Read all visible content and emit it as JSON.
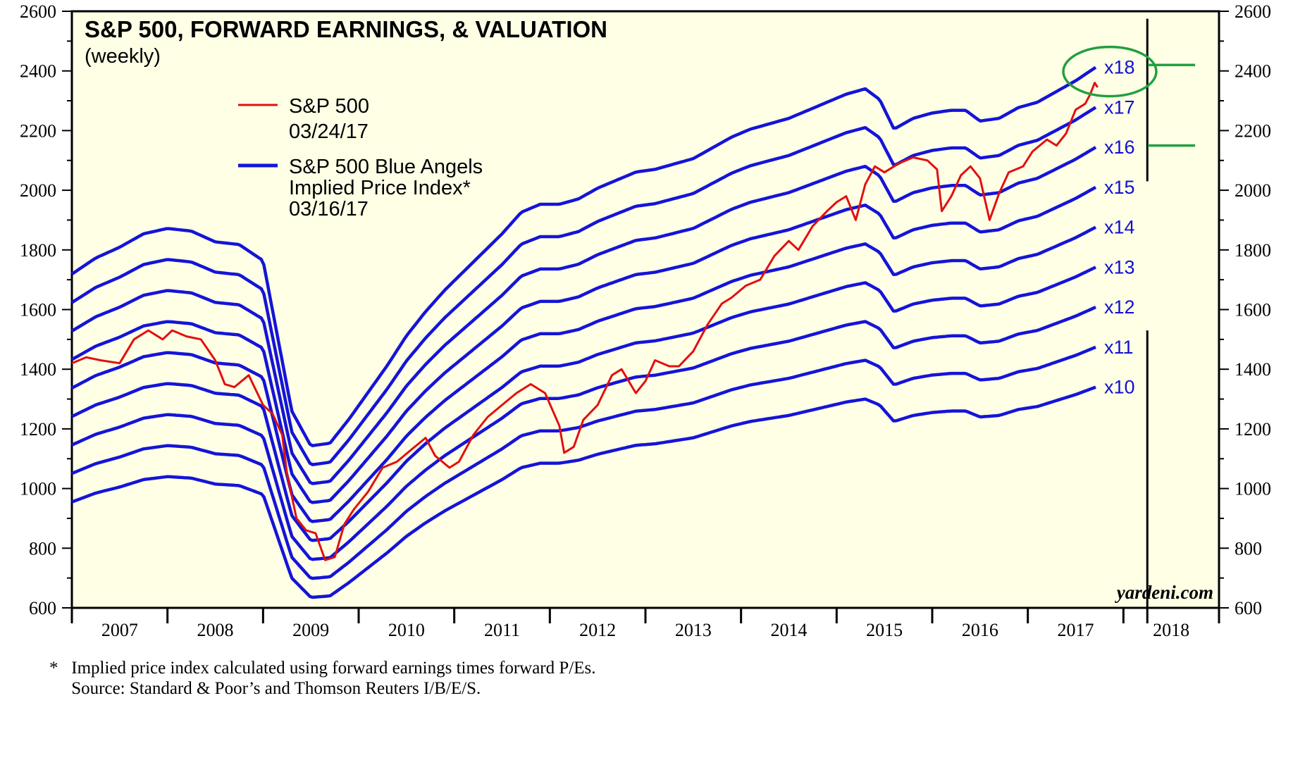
{
  "chart_data": {
    "type": "line",
    "title": "S&P 500, FORWARD EARNINGS, & VALUATION",
    "subtitle": "(weekly)",
    "x_ticks": [
      "2007",
      "2008",
      "2009",
      "2010",
      "2011",
      "2012",
      "2013",
      "2014",
      "2015",
      "2016",
      "2017",
      "2018"
    ],
    "xlim": [
      2006.5,
      2018.5
    ],
    "ylim": [
      600,
      2600
    ],
    "y_ticks": [
      600,
      800,
      1000,
      1200,
      1400,
      1600,
      1800,
      2000,
      2200,
      2400,
      2600
    ],
    "y_ticks_right": true,
    "legend": {
      "placement": "upper-left",
      "entries": [
        {
          "line1": "S&P 500",
          "line2": "03/24/17",
          "line3": "",
          "color": "#e01010"
        },
        {
          "line1": "S&P 500 Blue Angels",
          "line2": "Implied Price Index*",
          "line3": "03/16/17",
          "color": "#1414d8"
        }
      ]
    },
    "forward_earnings": {
      "x": [
        2006.5,
        2006.75,
        2007.0,
        2007.25,
        2007.5,
        2007.75,
        2008.0,
        2008.25,
        2008.5,
        2008.65,
        2008.8,
        2009.0,
        2009.2,
        2009.4,
        2009.6,
        2009.8,
        2010.0,
        2010.2,
        2010.4,
        2010.6,
        2010.8,
        2011.0,
        2011.2,
        2011.4,
        2011.6,
        2011.8,
        2012.0,
        2012.2,
        2012.4,
        2012.6,
        2012.8,
        2013.0,
        2013.2,
        2013.4,
        2013.6,
        2013.8,
        2014.0,
        2014.2,
        2014.4,
        2014.6,
        2014.8,
        2014.95,
        2015.1,
        2015.3,
        2015.5,
        2015.7,
        2015.85,
        2016.0,
        2016.2,
        2016.4,
        2016.6,
        2016.8,
        2017.0,
        2017.21
      ],
      "values": [
        95.5,
        98.5,
        100.5,
        103,
        104,
        103.5,
        101.5,
        101,
        98,
        84,
        70,
        63.5,
        64,
        68.5,
        73.5,
        78.5,
        84,
        88.5,
        92.5,
        96,
        99.5,
        103,
        107,
        108.5,
        108.5,
        109.5,
        111.5,
        113,
        114.5,
        115,
        116,
        117,
        119,
        121,
        122.5,
        123.5,
        124.5,
        126,
        127.5,
        129,
        130,
        128,
        122.5,
        124.5,
        125.5,
        126,
        126,
        124,
        124.5,
        126.5,
        127.5,
        129.5,
        131.5,
        134
      ]
    },
    "series": [
      {
        "name": "S&P 500",
        "color": "#e01010",
        "x": [
          2006.5,
          2006.65,
          2006.8,
          2007.0,
          2007.15,
          2007.3,
          2007.45,
          2007.55,
          2007.7,
          2007.85,
          2008.0,
          2008.1,
          2008.2,
          2008.35,
          2008.5,
          2008.6,
          2008.7,
          2008.75,
          2008.85,
          2008.95,
          2009.05,
          2009.15,
          2009.25,
          2009.35,
          2009.45,
          2009.6,
          2009.75,
          2009.9,
          2010.05,
          2010.2,
          2010.3,
          2010.45,
          2010.55,
          2010.7,
          2010.85,
          2011.0,
          2011.15,
          2011.3,
          2011.45,
          2011.6,
          2011.65,
          2011.75,
          2011.85,
          2012.0,
          2012.15,
          2012.25,
          2012.4,
          2012.5,
          2012.6,
          2012.75,
          2012.85,
          2013.0,
          2013.15,
          2013.3,
          2013.4,
          2013.55,
          2013.7,
          2013.85,
          2014.0,
          2014.1,
          2014.25,
          2014.4,
          2014.5,
          2014.6,
          2014.7,
          2014.8,
          2014.9,
          2015.0,
          2015.15,
          2015.3,
          2015.45,
          2015.55,
          2015.6,
          2015.7,
          2015.8,
          2015.9,
          2016.0,
          2016.1,
          2016.2,
          2016.3,
          2016.45,
          2016.55,
          2016.7,
          2016.8,
          2016.9,
          2017.0,
          2017.1,
          2017.15,
          2017.2,
          2017.23
        ],
        "values": [
          1420,
          1440,
          1430,
          1420,
          1500,
          1530,
          1500,
          1530,
          1510,
          1500,
          1430,
          1350,
          1340,
          1380,
          1280,
          1250,
          1180,
          1050,
          900,
          860,
          850,
          760,
          770,
          880,
          930,
          990,
          1070,
          1090,
          1130,
          1170,
          1110,
          1070,
          1090,
          1180,
          1240,
          1280,
          1320,
          1350,
          1320,
          1210,
          1120,
          1140,
          1230,
          1280,
          1380,
          1400,
          1320,
          1360,
          1430,
          1410,
          1410,
          1460,
          1550,
          1620,
          1640,
          1680,
          1700,
          1780,
          1830,
          1800,
          1880,
          1930,
          1960,
          1980,
          1900,
          2020,
          2080,
          2060,
          2090,
          2110,
          2100,
          2070,
          1930,
          1980,
          2050,
          2080,
          2040,
          1900,
          1990,
          2060,
          2080,
          2130,
          2170,
          2150,
          2190,
          2270,
          2290,
          2320,
          2360,
          2345
        ]
      },
      {
        "name": "",
        "multiple": 10,
        "color": "#1414d8"
      },
      {
        "name": "",
        "multiple": 11,
        "color": "#1414d8"
      },
      {
        "name": "",
        "multiple": 12,
        "color": "#1414d8"
      },
      {
        "name": "",
        "multiple": 13,
        "color": "#1414d8"
      },
      {
        "name": "",
        "multiple": 14,
        "color": "#1414d8"
      },
      {
        "name": "",
        "multiple": 15,
        "color": "#1414d8"
      },
      {
        "name": "",
        "multiple": 16,
        "color": "#1414d8"
      },
      {
        "name": "",
        "multiple": 17,
        "color": "#1414d8"
      },
      {
        "name": "",
        "multiple": 18,
        "color": "#1414d8"
      }
    ],
    "multiple_labels": [
      "x10",
      "x11",
      "x12",
      "x13",
      "x14",
      "x15",
      "x16",
      "x17",
      "x18"
    ],
    "annotations": {
      "highlight_circle": {
        "label": "x18",
        "color": "#20a040"
      },
      "reference_lines": [
        {
          "value": 2420,
          "color": "#20a040"
        },
        {
          "value": 2150,
          "color": "#20a040"
        }
      ],
      "divider_year": 2017.75
    },
    "watermark": "yardeni.com",
    "background_color": "#ffffe6"
  },
  "footnotes": {
    "line1": "*   Implied price index calculated using forward earnings times forward P/Es.",
    "line2": "     Source: Standard & Poor’s and Thomson Reuters I/B/E/S."
  }
}
